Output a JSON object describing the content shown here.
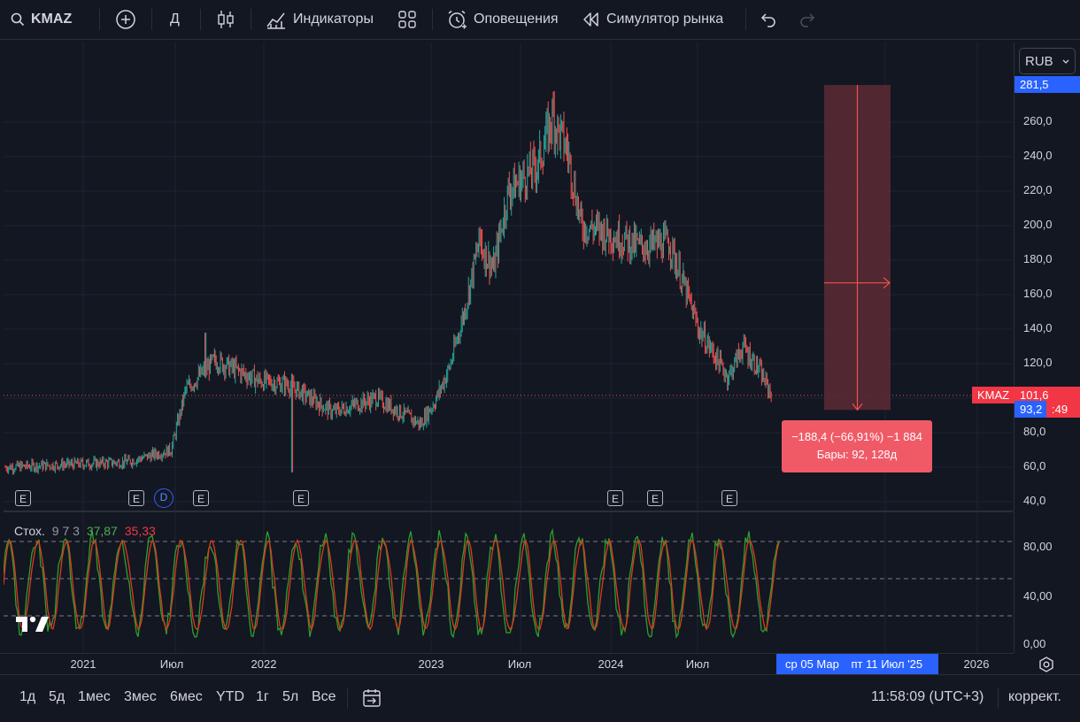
{
  "toolbar": {
    "symbol": "KMAZ",
    "interval": "Д",
    "indicators_label": "Индикаторы",
    "alerts_label": "Оповещения",
    "replay_label": "Симулятор рынка"
  },
  "currency": "RUB",
  "price_scale": {
    "ticks": [
      "260,0",
      "240,0",
      "220,0",
      "200,0",
      "180,0",
      "160,0",
      "140,0",
      "120,0",
      "80,0",
      "60,0",
      "40,0"
    ],
    "top_label": "281,5",
    "current_price": "101,6",
    "measure_low": "93,2",
    "countdown": ":49",
    "symbol_tag": "KMAZ"
  },
  "stoch": {
    "name": "Стох.",
    "params": "9 7 3",
    "k_value": "37,87",
    "d_value": "35,33",
    "ticks": [
      "80,00",
      "40,00",
      "0,00"
    ]
  },
  "measure_tooltip": {
    "line1": "−188,4 (−66,91%) −1 884",
    "line2": "Бары: 92, 128д"
  },
  "events": {
    "earnings": "E",
    "dividend": "D"
  },
  "time_axis": {
    "ticks": [
      "2021",
      "Июл",
      "2022",
      "2023",
      "Июл",
      "2024",
      "Июл",
      "2026"
    ],
    "range_from": "ср 05 Мар",
    "range_to": "пт 11 Июл '25"
  },
  "bottombar": {
    "ranges": [
      "1д",
      "5д",
      "1мес",
      "3мес",
      "6мес",
      "YTD",
      "1г",
      "5л",
      "Все"
    ],
    "clock": "11:58:09 (UTC+3)",
    "adjust": "коррект."
  },
  "colors": {
    "background": "#131722",
    "up": "#26a69a",
    "down": "#ef5350",
    "accent": "#2962ff",
    "stoch_k": "#2e9e2e",
    "stoch_d": "#e0381d",
    "measure_fill": "#5d2a34",
    "tooltip": "#f05a67"
  },
  "chart_data": {
    "type": "line",
    "title": "KMAZ",
    "ylim": [
      40,
      281.5
    ],
    "x": [
      "2021-01",
      "2021-04",
      "2021-07",
      "2021-08",
      "2021-10",
      "2022-01",
      "2022-03",
      "2022-06",
      "2022-09",
      "2022-12",
      "2023-01",
      "2023-02",
      "2023-03",
      "2023-04",
      "2023-05",
      "2023-06",
      "2023-08",
      "2023-09",
      "2023-10",
      "2023-11",
      "2023-12",
      "2024-01",
      "2024-03",
      "2024-05",
      "2024-06",
      "2024-07",
      "2024-09",
      "2024-10",
      "2024-11",
      "2024-12"
    ],
    "series": [
      {
        "values": [
          62,
          63,
          70,
          105,
          122,
          110,
          108,
          92,
          100,
          85,
          98,
          118,
          150,
          190,
          175,
          220,
          235,
          262,
          245,
          200,
          198,
          195,
          188,
          190,
          165,
          140,
          112,
          130,
          118,
          101.6
        ]
      }
    ]
  }
}
